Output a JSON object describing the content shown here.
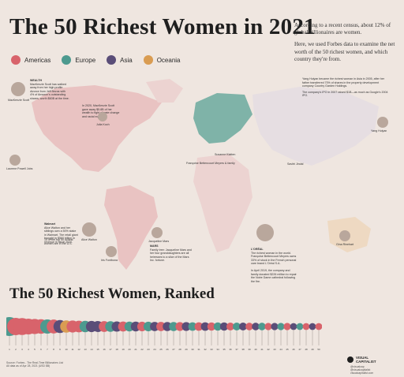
{
  "title": "The 50 Richest Women in 2021",
  "intro": [
    "According to a recent census, about 12% of global billionaires are women.",
    "Here, we used Forbes data to examine the net worth of the 50 richest women, and which country they're from."
  ],
  "legend": [
    {
      "name": "Americas",
      "color": "#d8636b"
    },
    {
      "name": "Europe",
      "color": "#4d9a8f"
    },
    {
      "name": "Asia",
      "color": "#5a4d78"
    },
    {
      "name": "Oceania",
      "color": "#d99c52"
    }
  ],
  "section_title": "The 50 Richest Women, Ranked",
  "map_labels": {
    "mackenzie": "MacKenzie Scott",
    "julia": "Julia Koch",
    "laurene": "Laurene Powell Jobs",
    "alice": "Alice Walton",
    "iris": "Iris Fontbona",
    "jacqueline": "Jacqueline Mars",
    "francoise": "Françoise Bettencourt Meyers & family",
    "susanne": "Susanne Klatten",
    "yang": "Yang Huiyan",
    "gina": "Gina Rinehart",
    "savitri": "Savitri Jindal"
  },
  "notes": {
    "mackenzie_heading": "WEALTH",
    "mackenzie_note": "MacKenzie Scott has walked away from her high profile divorce from Jeff Bezos with 4% of Amazon's outstanding shares, worth $60B at the time.",
    "bezos_note": "In 2020, MacKenzie Scott gave away $5.8B of her wealth to fight climate change and racial equality.",
    "walmart_heading": "Walmart",
    "walmart_note": "Alice Walton and her siblings own a 50% stake in Walmart. The retail giant brought in $560 billion in revenue in fiscal 2020.",
    "us_note": "15 of the top 50 richest women are in the U.S.",
    "mars_heading": "MARS",
    "mars_note": "Family tree: Jacqueline Mars and her four granddaughters are all heiresses to a slice of the Mars Inc. fortune.",
    "bettencourt_heading": "L'ORÉAL",
    "bettencourt_note": "The richest woman in the world. Françoise Bettencourt Meyers owns 33% of stock in the French personal care brand L'Oréal S.A.",
    "bettencourt_note2": "In April 2019, the company and family donated $226 million to repair the Notre Dame cathedral following the fire.",
    "yang_note": "Yang Huiyan became the richest woman in Asia in 2005, after her father transferred 70% of shares in the property development company Country Garden Holdings.",
    "yang_note2": "The company's IPO in 2007 raised $1B—as much as Google's 2004 IPO."
  },
  "chart_data": {
    "type": "bar",
    "title": "The 50 Richest Women, Ranked",
    "categories": [
      "1",
      "2",
      "3",
      "4",
      "5",
      "6",
      "7",
      "8",
      "9",
      "10",
      "11",
      "12",
      "13",
      "14",
      "15",
      "16",
      "17",
      "18",
      "19",
      "20",
      "21",
      "22",
      "23",
      "24",
      "25",
      "26",
      "27",
      "28",
      "29",
      "30",
      "31",
      "32",
      "33",
      "34",
      "35",
      "36",
      "37",
      "38",
      "39",
      "40",
      "41",
      "42",
      "43",
      "44",
      "45",
      "46",
      "47",
      "48",
      "49",
      "50"
    ],
    "values": [
      74,
      62,
      60,
      52,
      48,
      44,
      42,
      40,
      35,
      31,
      30,
      28,
      27,
      26,
      25,
      24,
      23,
      22,
      21,
      20,
      20,
      19,
      19,
      18,
      18,
      17,
      17,
      16,
      16,
      15,
      15,
      15,
      14,
      14,
      14,
      13,
      13,
      13,
      12,
      12,
      12,
      11,
      11,
      11,
      11,
      10,
      10,
      10,
      10,
      10
    ],
    "regions": [
      "Europe",
      "Americas",
      "Americas",
      "Americas",
      "Americas",
      "Americas",
      "Europe",
      "Americas",
      "Asia",
      "Oceania",
      "Americas",
      "Americas",
      "Europe",
      "Asia",
      "Asia",
      "Americas",
      "Europe",
      "Asia",
      "Americas",
      "Europe",
      "Asia",
      "Americas",
      "Europe",
      "Asia",
      "Americas",
      "Asia",
      "Europe",
      "Americas",
      "Asia",
      "Europe",
      "Americas",
      "Asia",
      "Americas",
      "Europe",
      "Asia",
      "Americas",
      "Europe",
      "Asia",
      "Americas",
      "Asia",
      "Europe",
      "Americas",
      "Asia",
      "Europe",
      "Americas",
      "Asia",
      "Europe",
      "Americas",
      "Asia",
      "Americas"
    ]
  },
  "footer": {
    "source": "Source: Forbes - The Real-Time Billionaires List",
    "note": "All data as of Apr 28, 2021 (USD $B)"
  },
  "brand": {
    "line1": "VISUAL",
    "line2": "CAPITALIST"
  },
  "social": [
    "@visualcap",
    "@visualcapitalist",
    "visualcapitalist.com"
  ]
}
